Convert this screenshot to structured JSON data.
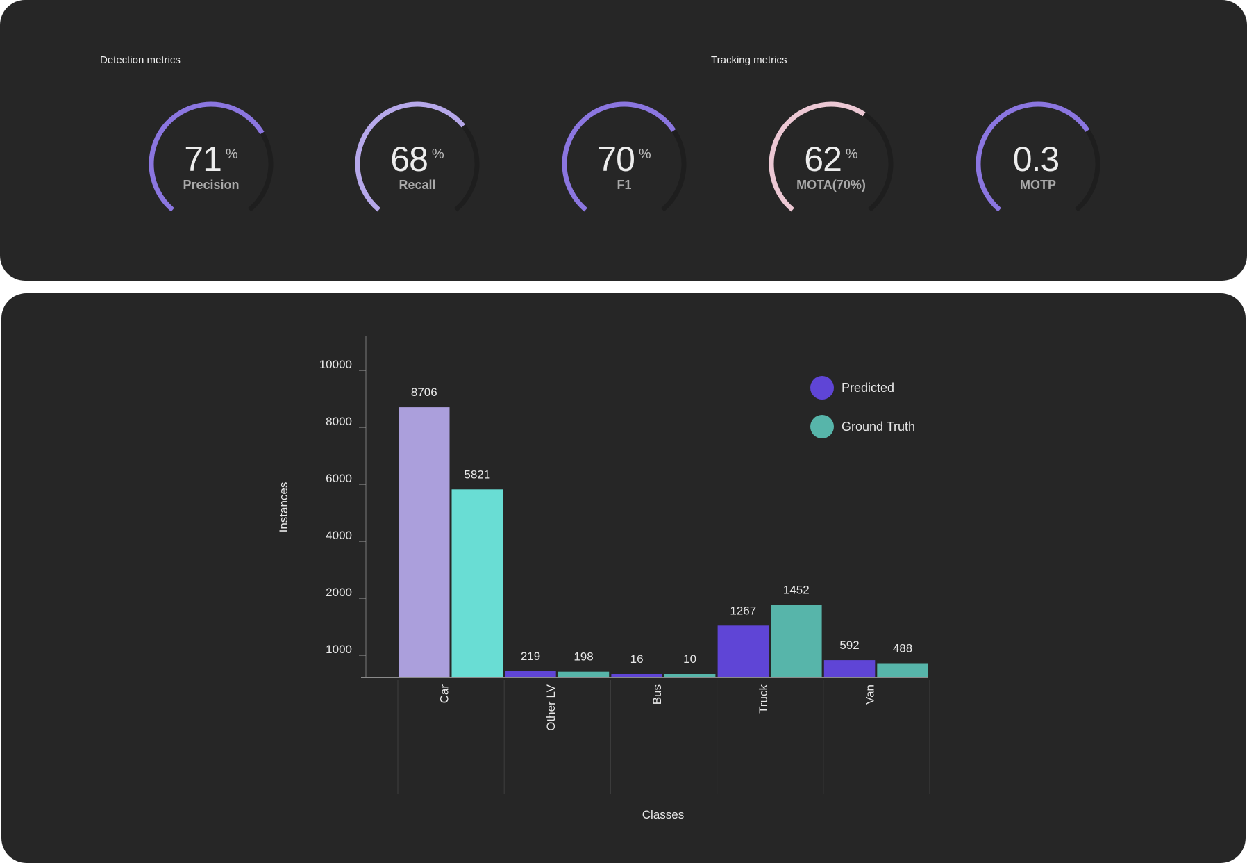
{
  "detection": {
    "title": "Detection metrics",
    "gauges": [
      {
        "value": "71",
        "unit": "%",
        "label": "Precision",
        "fraction": 0.71,
        "color": "#8b76e0",
        "track": "#1e1e1e"
      },
      {
        "value": "68",
        "unit": "%",
        "label": "Recall",
        "fraction": 0.68,
        "color": "#b6a8ea",
        "track": "#1e1e1e"
      },
      {
        "value": "70",
        "unit": "%",
        "label": "F1",
        "fraction": 0.7,
        "color": "#8b76e0",
        "track": "#1e1e1e"
      }
    ]
  },
  "tracking": {
    "title": "Tracking metrics",
    "gauges": [
      {
        "value": "62",
        "unit": "%",
        "label": "MOTA(70%)",
        "fraction": 0.62,
        "color": "#ecc8d4",
        "track": "#1e1e1e"
      },
      {
        "value": "0.3",
        "unit": "",
        "label": "MOTP",
        "fraction": 0.7,
        "color": "#8b76e0",
        "track": "#1e1e1e"
      }
    ]
  },
  "chart_data": {
    "type": "bar",
    "title": "",
    "xlabel": "Classes",
    "ylabel": "Instances",
    "categories": [
      "Car",
      "Other LV",
      "Bus",
      "Truck",
      "Van"
    ],
    "series": [
      {
        "name": "Predicted",
        "values": [
          8706,
          219,
          16,
          1267,
          592
        ],
        "color": "#5f45d6"
      },
      {
        "name": "Ground Truth",
        "values": [
          5821,
          198,
          10,
          1452,
          488
        ],
        "color": "#57b5aa"
      }
    ],
    "car_colors": [
      "#ab9fdc",
      "#69ddd4"
    ],
    "y_ticks": [
      "1000",
      "2000",
      "4000",
      "6000",
      "8000",
      "10000"
    ],
    "legend_position": "top-right",
    "background": "#262626"
  }
}
